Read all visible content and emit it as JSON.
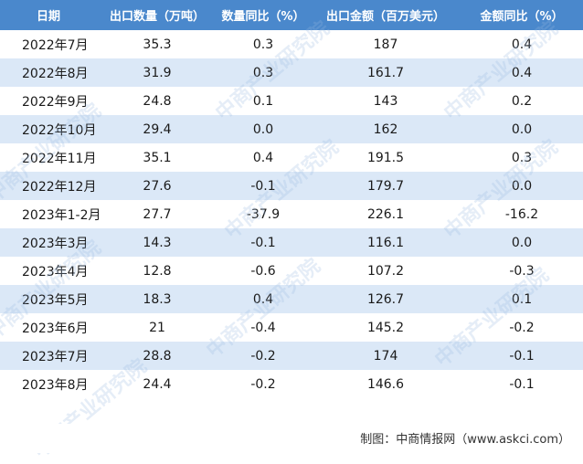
{
  "table": {
    "headers": [
      "日期",
      "出口数量（万吨）",
      "数量同比（%）",
      "出口金额（百万美元）",
      "金额同比（%）"
    ],
    "rows": [
      [
        "2022年7月",
        "35.3",
        "0.3",
        "187",
        "0.4"
      ],
      [
        "2022年8月",
        "31.9",
        "0.3",
        "161.7",
        "0.4"
      ],
      [
        "2022年9月",
        "24.8",
        "0.1",
        "143",
        "0.2"
      ],
      [
        "2022年10月",
        "29.4",
        "0.0",
        "162",
        "0.0"
      ],
      [
        "2022年11月",
        "35.1",
        "0.4",
        "191.5",
        "0.3"
      ],
      [
        "2022年12月",
        "27.6",
        "-0.1",
        "179.7",
        "0.0"
      ],
      [
        "2023年1-2月",
        "27.7",
        "-37.9",
        "226.1",
        "-16.2"
      ],
      [
        "2023年3月",
        "14.3",
        "-0.1",
        "116.1",
        "0.0"
      ],
      [
        "2023年4月",
        "12.8",
        "-0.6",
        "107.2",
        "-0.3"
      ],
      [
        "2023年5月",
        "18.3",
        "0.4",
        "126.7",
        "0.1"
      ],
      [
        "2023年6月",
        "21",
        "-0.4",
        "145.2",
        "-0.2"
      ],
      [
        "2023年7月",
        "28.8",
        "-0.2",
        "174",
        "-0.1"
      ],
      [
        "2023年8月",
        "24.4",
        "-0.2",
        "146.6",
        "-0.1"
      ]
    ]
  },
  "source": "制图：中商情报网（www.askci.com）",
  "watermark": "中商产业研究院",
  "colors": {
    "header_bg": "#4a88cc",
    "alt_row_bg": "#dbe8f7",
    "header_text": "#ffffff"
  }
}
